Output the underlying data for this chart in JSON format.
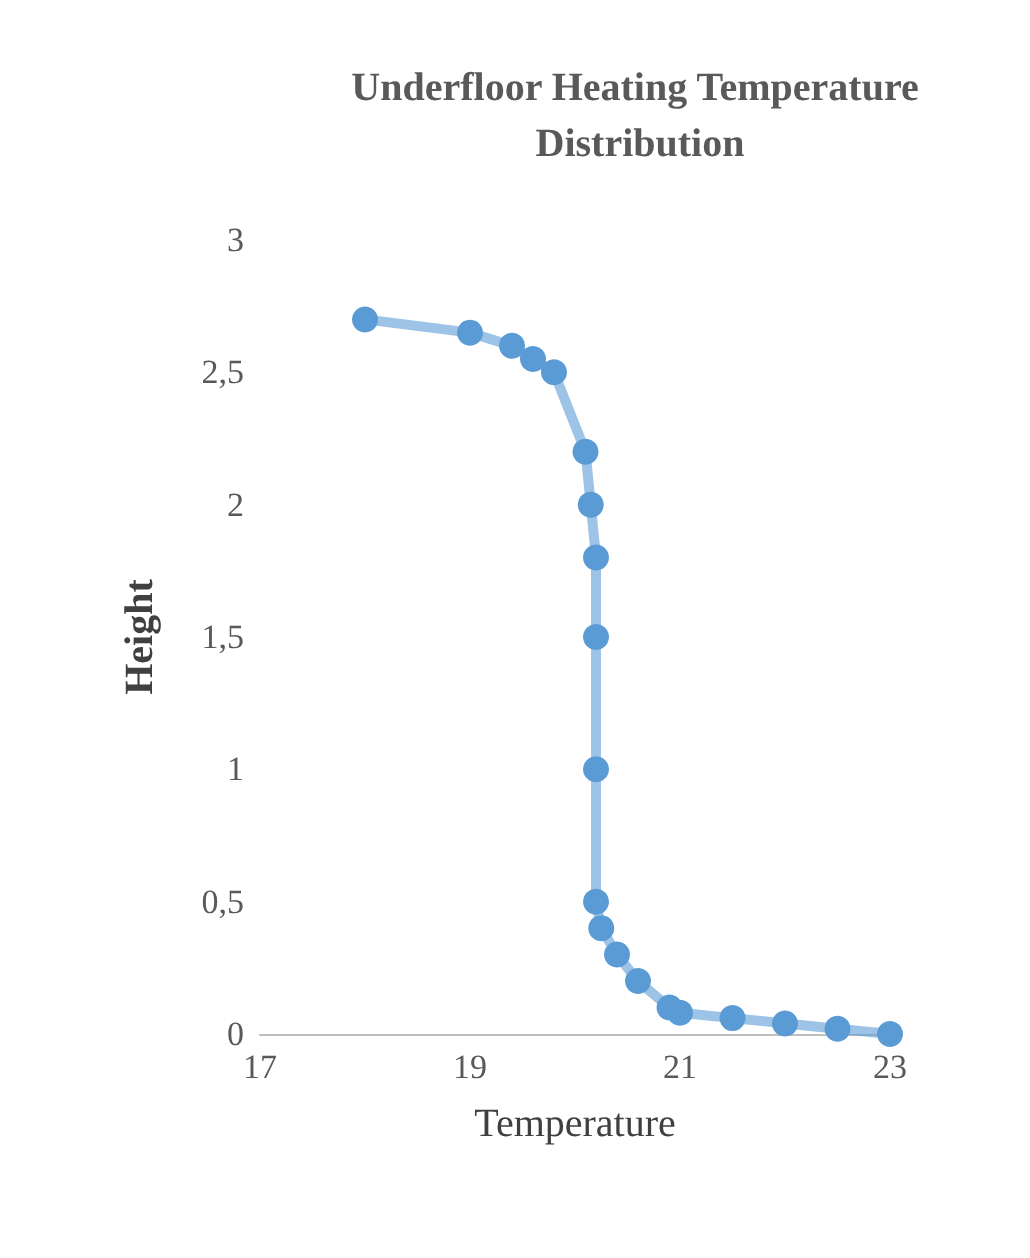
{
  "chart_data": {
    "type": "line",
    "title": "Underfloor Heating Temperature Distribution",
    "xlabel": "Temperature",
    "ylabel": "Height",
    "series": [
      {
        "color": "#5b9bd5",
        "x": [
          18,
          19,
          19.4,
          19.6,
          19.8,
          20.1,
          20.15,
          20.2,
          20.2,
          20.2,
          20.2,
          20.25,
          20.4,
          20.6,
          20.9,
          21,
          21.5,
          22,
          22.5,
          23
        ],
        "values": [
          2.7,
          2.65,
          2.6,
          2.55,
          2.5,
          2.2,
          2.0,
          1.8,
          1.5,
          1.0,
          0.5,
          0.4,
          0.3,
          0.2,
          0.1,
          0.08,
          0.06,
          0.04,
          0.02,
          0
        ]
      }
    ],
    "xlim": [
      17,
      23
    ],
    "xticks": [
      17,
      19,
      21,
      23
    ],
    "ylim": [
      0,
      3
    ],
    "yticks": [
      0,
      {
        "value": 0.5,
        "label": "0,5"
      },
      1,
      {
        "value": 1.5,
        "label": "1,5"
      },
      2,
      {
        "value": 2.5,
        "label": "2,5"
      },
      3
    ],
    "marker": "circle",
    "line_style": "solid",
    "grid": false
  }
}
